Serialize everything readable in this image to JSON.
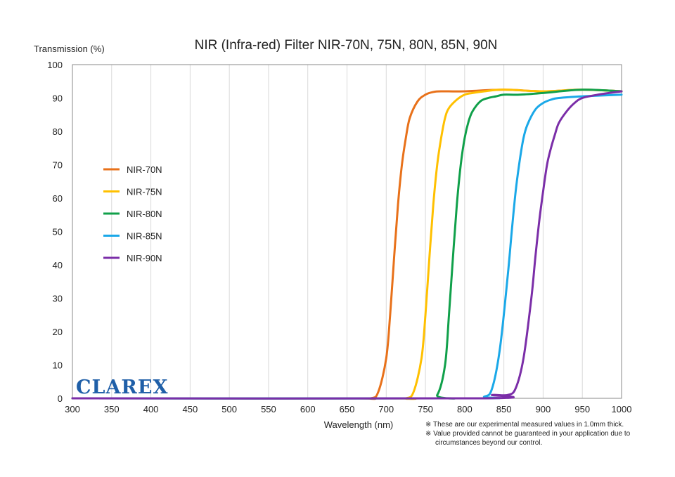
{
  "chart_data": {
    "type": "line",
    "title": "NIR (Infra-red) Filter  NIR-70N, 75N, 80N, 85N, 90N",
    "xlabel": "Wavelength (nm)",
    "ylabel": "Transmission (%)",
    "xlim": [
      300,
      1000
    ],
    "ylim": [
      0,
      100
    ],
    "xticks": [
      300,
      350,
      400,
      450,
      500,
      550,
      600,
      650,
      700,
      750,
      800,
      850,
      900,
      950,
      1000
    ],
    "yticks": [
      0,
      10,
      20,
      30,
      40,
      50,
      60,
      70,
      80,
      90,
      100
    ],
    "grid": "vertical",
    "legend_position": "left",
    "series": [
      {
        "name": "NIR-70N",
        "color": "#e8711a",
        "x": [
          300,
          650,
          680,
          690,
          700,
          705,
          710,
          715,
          720,
          725,
          730,
          740,
          750,
          760,
          770,
          800,
          850,
          900,
          950,
          1000
        ],
        "y": [
          0,
          0,
          0,
          2,
          12,
          25,
          42,
          58,
          70,
          78,
          84,
          89,
          91,
          91.8,
          92,
          92,
          92.5,
          92,
          92.5,
          92
        ]
      },
      {
        "name": "NIR-75N",
        "color": "#ffc000",
        "x": [
          300,
          700,
          725,
          735,
          745,
          750,
          755,
          760,
          765,
          770,
          775,
          780,
          790,
          800,
          810,
          825,
          850,
          900,
          950,
          1000
        ],
        "y": [
          0,
          0,
          0,
          2,
          12,
          25,
          42,
          58,
          70,
          78,
          84,
          87,
          89.5,
          91,
          91.5,
          92,
          92.5,
          92,
          92.5,
          92
        ]
      },
      {
        "name": "NIR-80N",
        "color": "#10a04a",
        "x": [
          300,
          750,
          765,
          775,
          780,
          785,
          790,
          795,
          800,
          805,
          810,
          820,
          830,
          840,
          850,
          870,
          900,
          950,
          1000
        ],
        "y": [
          0,
          0,
          1,
          10,
          25,
          42,
          58,
          70,
          78,
          83,
          86,
          89,
          90,
          90.5,
          91,
          91,
          91.5,
          92.5,
          92
        ]
      },
      {
        "name": "NIR-85N",
        "color": "#1aa8e8",
        "x": [
          300,
          800,
          825,
          835,
          845,
          855,
          860,
          865,
          870,
          875,
          880,
          890,
          900,
          910,
          920,
          950,
          1000
        ],
        "y": [
          0,
          0,
          0.5,
          3,
          15,
          37,
          50,
          62,
          71,
          78,
          82,
          86.5,
          88.5,
          89.5,
          90,
          90.5,
          91
        ]
      },
      {
        "name": "NIR-90N",
        "color": "#7b2ea8",
        "x": [
          300,
          820,
          835,
          855,
          865,
          875,
          885,
          890,
          895,
          900,
          905,
          910,
          915,
          920,
          930,
          940,
          950,
          970,
          1000
        ],
        "y": [
          0,
          0,
          1,
          1,
          3,
          12,
          30,
          42,
          53,
          62,
          70,
          75,
          79,
          82.5,
          86,
          88.5,
          90,
          91,
          92
        ]
      }
    ],
    "notes": [
      "※ These are our experimental measured values in 1.0mm thick.",
      "※ Value provided cannot be guaranteed in your application due to",
      "circumstances beyond our control."
    ]
  },
  "brand": "CLAREX"
}
